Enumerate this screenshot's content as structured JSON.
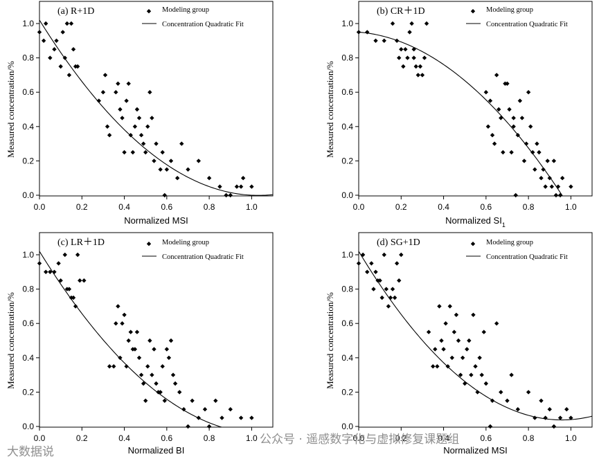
{
  "chart_data": [
    {
      "type": "scatter",
      "title": "(a) R+1D",
      "xlabel": "Normalized  MSI",
      "ylabel": "Measured concentration/%",
      "xlim": [
        0,
        1.1
      ],
      "ylim": [
        0,
        1.05
      ],
      "xticks": [
        "0.0",
        "0.2",
        "0.4",
        "0.6",
        "0.8",
        "1.0"
      ],
      "yticks": [
        "0.0",
        "0.2",
        "0.4",
        "0.6",
        "0.8",
        "1.0"
      ],
      "legend": [
        "Modeling group",
        "Concentration Quadratic Fit"
      ],
      "fit": [
        1.02,
        -1.98,
        0.96
      ],
      "series": [
        {
          "name": "Modeling group",
          "x": [
            0.0,
            0.02,
            0.03,
            0.05,
            0.07,
            0.08,
            0.1,
            0.11,
            0.12,
            0.13,
            0.14,
            0.15,
            0.16,
            0.17,
            0.18,
            0.28,
            0.3,
            0.31,
            0.32,
            0.33,
            0.36,
            0.37,
            0.38,
            0.39,
            0.4,
            0.41,
            0.42,
            0.43,
            0.44,
            0.45,
            0.46,
            0.47,
            0.48,
            0.49,
            0.5,
            0.51,
            0.52,
            0.53,
            0.54,
            0.55,
            0.57,
            0.58,
            0.59,
            0.6,
            0.62,
            0.65,
            0.67,
            0.7,
            0.75,
            0.8,
            0.85,
            0.88,
            0.9,
            0.93,
            0.95,
            0.96,
            1.0
          ],
          "y": [
            0.95,
            0.9,
            1.0,
            0.8,
            0.85,
            0.9,
            0.75,
            0.95,
            0.8,
            1.0,
            0.7,
            1.0,
            0.85,
            0.75,
            0.75,
            0.55,
            0.6,
            0.7,
            0.4,
            0.35,
            0.6,
            0.65,
            0.5,
            0.45,
            0.25,
            0.55,
            0.65,
            0.35,
            0.25,
            0.4,
            0.5,
            0.45,
            0.35,
            0.3,
            0.25,
            0.4,
            0.6,
            0.45,
            0.2,
            0.3,
            0.15,
            0.25,
            0.0,
            0.15,
            0.2,
            0.1,
            0.3,
            0.15,
            0.2,
            0.1,
            0.05,
            0.0,
            0.0,
            0.05,
            0.05,
            0.1,
            0.05
          ]
        }
      ]
    },
    {
      "type": "scatter",
      "title": "(b) CR＋1D",
      "xlabel": "Normalized  SI",
      "xlabel_sub": "1",
      "ylabel": "Measured concentration/%",
      "xlim": [
        0,
        1.1
      ],
      "ylim": [
        0,
        1.05
      ],
      "xticks": [
        "0.0",
        "0.2",
        "0.4",
        "0.6",
        "0.8",
        "1.0"
      ],
      "yticks": [
        "0.0",
        "0.2",
        "0.4",
        "0.6",
        "0.8",
        "1.0"
      ],
      "legend": [
        "Modeling group",
        "Concentration Quadratic Fit"
      ],
      "fit": [
        0.95,
        -0.1,
        -0.93
      ],
      "series": [
        {
          "name": "Modeling group",
          "x": [
            0.0,
            0.04,
            0.08,
            0.12,
            0.16,
            0.18,
            0.19,
            0.2,
            0.21,
            0.22,
            0.23,
            0.24,
            0.25,
            0.26,
            0.26,
            0.27,
            0.28,
            0.29,
            0.3,
            0.31,
            0.32,
            0.6,
            0.61,
            0.62,
            0.63,
            0.64,
            0.65,
            0.66,
            0.67,
            0.68,
            0.69,
            0.7,
            0.71,
            0.72,
            0.73,
            0.74,
            0.75,
            0.76,
            0.77,
            0.78,
            0.79,
            0.8,
            0.81,
            0.82,
            0.83,
            0.84,
            0.85,
            0.86,
            0.87,
            0.88,
            0.89,
            0.9,
            0.91,
            0.92,
            0.93,
            0.94,
            0.95,
            0.96,
            1.0,
            0.73
          ],
          "y": [
            0.95,
            0.95,
            0.9,
            0.9,
            1.0,
            0.9,
            0.8,
            0.85,
            0.75,
            0.85,
            0.8,
            0.95,
            1.0,
            0.8,
            0.85,
            0.75,
            0.7,
            0.75,
            0.7,
            0.8,
            1.0,
            0.6,
            0.4,
            0.55,
            0.35,
            0.3,
            0.7,
            0.5,
            0.45,
            0.25,
            0.65,
            0.65,
            0.5,
            0.25,
            0.4,
            0.0,
            0.35,
            0.55,
            0.45,
            0.2,
            0.3,
            0.6,
            0.4,
            0.25,
            0.15,
            0.3,
            0.25,
            0.1,
            0.15,
            0.05,
            0.2,
            0.1,
            0.05,
            0.2,
            0.0,
            0.05,
            0.0,
            0.1,
            0.05,
            0.45
          ]
        }
      ]
    },
    {
      "type": "scatter",
      "title": "(c) LR＋1D",
      "xlabel": "Normalized BI",
      "ylabel": "Measured concentration/%",
      "xlim": [
        0,
        1.05
      ],
      "ylim": [
        0,
        1.05
      ],
      "xticks": [
        "0.0",
        "0.2",
        "0.4",
        "0.6",
        "0.8",
        "1.0"
      ],
      "yticks": [
        "0.0",
        "0.2",
        "0.4",
        "0.6",
        "0.8",
        "1.0"
      ],
      "legend": [
        "Modeling group",
        "Concentration Quadratic Fit"
      ],
      "fit": [
        1.02,
        -2.0,
        0.94
      ],
      "series": [
        {
          "name": "Modeling group",
          "x": [
            0.0,
            0.03,
            0.05,
            0.07,
            0.09,
            0.1,
            0.12,
            0.13,
            0.14,
            0.15,
            0.16,
            0.17,
            0.18,
            0.19,
            0.21,
            0.33,
            0.35,
            0.36,
            0.37,
            0.38,
            0.39,
            0.4,
            0.41,
            0.42,
            0.43,
            0.44,
            0.45,
            0.46,
            0.47,
            0.48,
            0.49,
            0.5,
            0.51,
            0.52,
            0.53,
            0.54,
            0.55,
            0.56,
            0.57,
            0.58,
            0.59,
            0.6,
            0.61,
            0.62,
            0.63,
            0.64,
            0.66,
            0.68,
            0.7,
            0.72,
            0.75,
            0.78,
            0.8,
            0.83,
            0.86,
            0.9,
            0.95,
            1.0
          ],
          "y": [
            0.95,
            0.9,
            0.9,
            0.9,
            0.95,
            0.85,
            1.0,
            0.8,
            0.8,
            0.75,
            0.75,
            0.7,
            1.0,
            0.85,
            0.85,
            0.35,
            0.35,
            0.6,
            0.7,
            0.4,
            0.6,
            0.65,
            0.35,
            0.5,
            0.55,
            0.45,
            0.45,
            0.55,
            0.4,
            0.3,
            0.25,
            0.15,
            0.35,
            0.5,
            0.3,
            0.45,
            0.25,
            0.2,
            0.2,
            0.35,
            0.15,
            0.45,
            0.4,
            0.5,
            0.3,
            0.25,
            0.2,
            0.1,
            0.0,
            0.15,
            0.05,
            0.1,
            0.0,
            0.15,
            0.05,
            0.1,
            0.05,
            0.05
          ]
        }
      ]
    },
    {
      "type": "scatter",
      "title": "(d) SG+1D",
      "xlabel": "Normalized  MSI",
      "ylabel": "Measured concentration/%",
      "xlim": [
        0,
        1.1
      ],
      "ylim": [
        0,
        1.05
      ],
      "xticks": [
        "0.0",
        "0.2",
        "0.4",
        "0.6",
        "0.8",
        "1.0"
      ],
      "yticks": [
        "0.0",
        "0.2",
        "0.4",
        "0.6",
        "0.8",
        "1.0"
      ],
      "legend": [
        "Modeling group",
        "Concentration Quadratic Fit"
      ],
      "fit": [
        1.02,
        -2.05,
        1.07
      ],
      "series": [
        {
          "name": "Modeling group",
          "x": [
            0.0,
            0.02,
            0.04,
            0.06,
            0.07,
            0.08,
            0.09,
            0.1,
            0.11,
            0.12,
            0.13,
            0.14,
            0.15,
            0.16,
            0.17,
            0.18,
            0.19,
            0.2,
            0.33,
            0.35,
            0.36,
            0.37,
            0.38,
            0.39,
            0.4,
            0.41,
            0.42,
            0.43,
            0.44,
            0.45,
            0.46,
            0.47,
            0.48,
            0.49,
            0.5,
            0.51,
            0.52,
            0.53,
            0.54,
            0.55,
            0.56,
            0.57,
            0.58,
            0.59,
            0.6,
            0.62,
            0.63,
            0.65,
            0.67,
            0.7,
            0.72,
            0.75,
            0.8,
            0.83,
            0.86,
            0.88,
            0.9,
            0.92,
            0.95,
            0.98,
            1.0
          ],
          "y": [
            0.95,
            1.0,
            0.9,
            0.95,
            0.8,
            0.9,
            0.85,
            0.85,
            0.75,
            1.0,
            0.8,
            0.7,
            0.75,
            0.8,
            0.75,
            0.95,
            0.85,
            1.0,
            0.55,
            0.35,
            0.45,
            0.35,
            0.7,
            0.5,
            0.45,
            0.6,
            0.35,
            0.7,
            0.4,
            0.55,
            0.65,
            0.5,
            0.3,
            0.4,
            0.25,
            0.45,
            0.5,
            0.3,
            0.65,
            0.35,
            0.2,
            0.4,
            0.3,
            0.55,
            0.25,
            0.0,
            0.15,
            0.6,
            0.2,
            0.15,
            0.3,
            0.1,
            0.2,
            0.05,
            0.15,
            0.05,
            0.1,
            0.0,
            0.05,
            0.1,
            0.05
          ]
        }
      ]
    }
  ],
  "watermarks": {
    "left": "大数据说",
    "right": "公众号 · 遥感数字化与虚拟修复课题组"
  }
}
